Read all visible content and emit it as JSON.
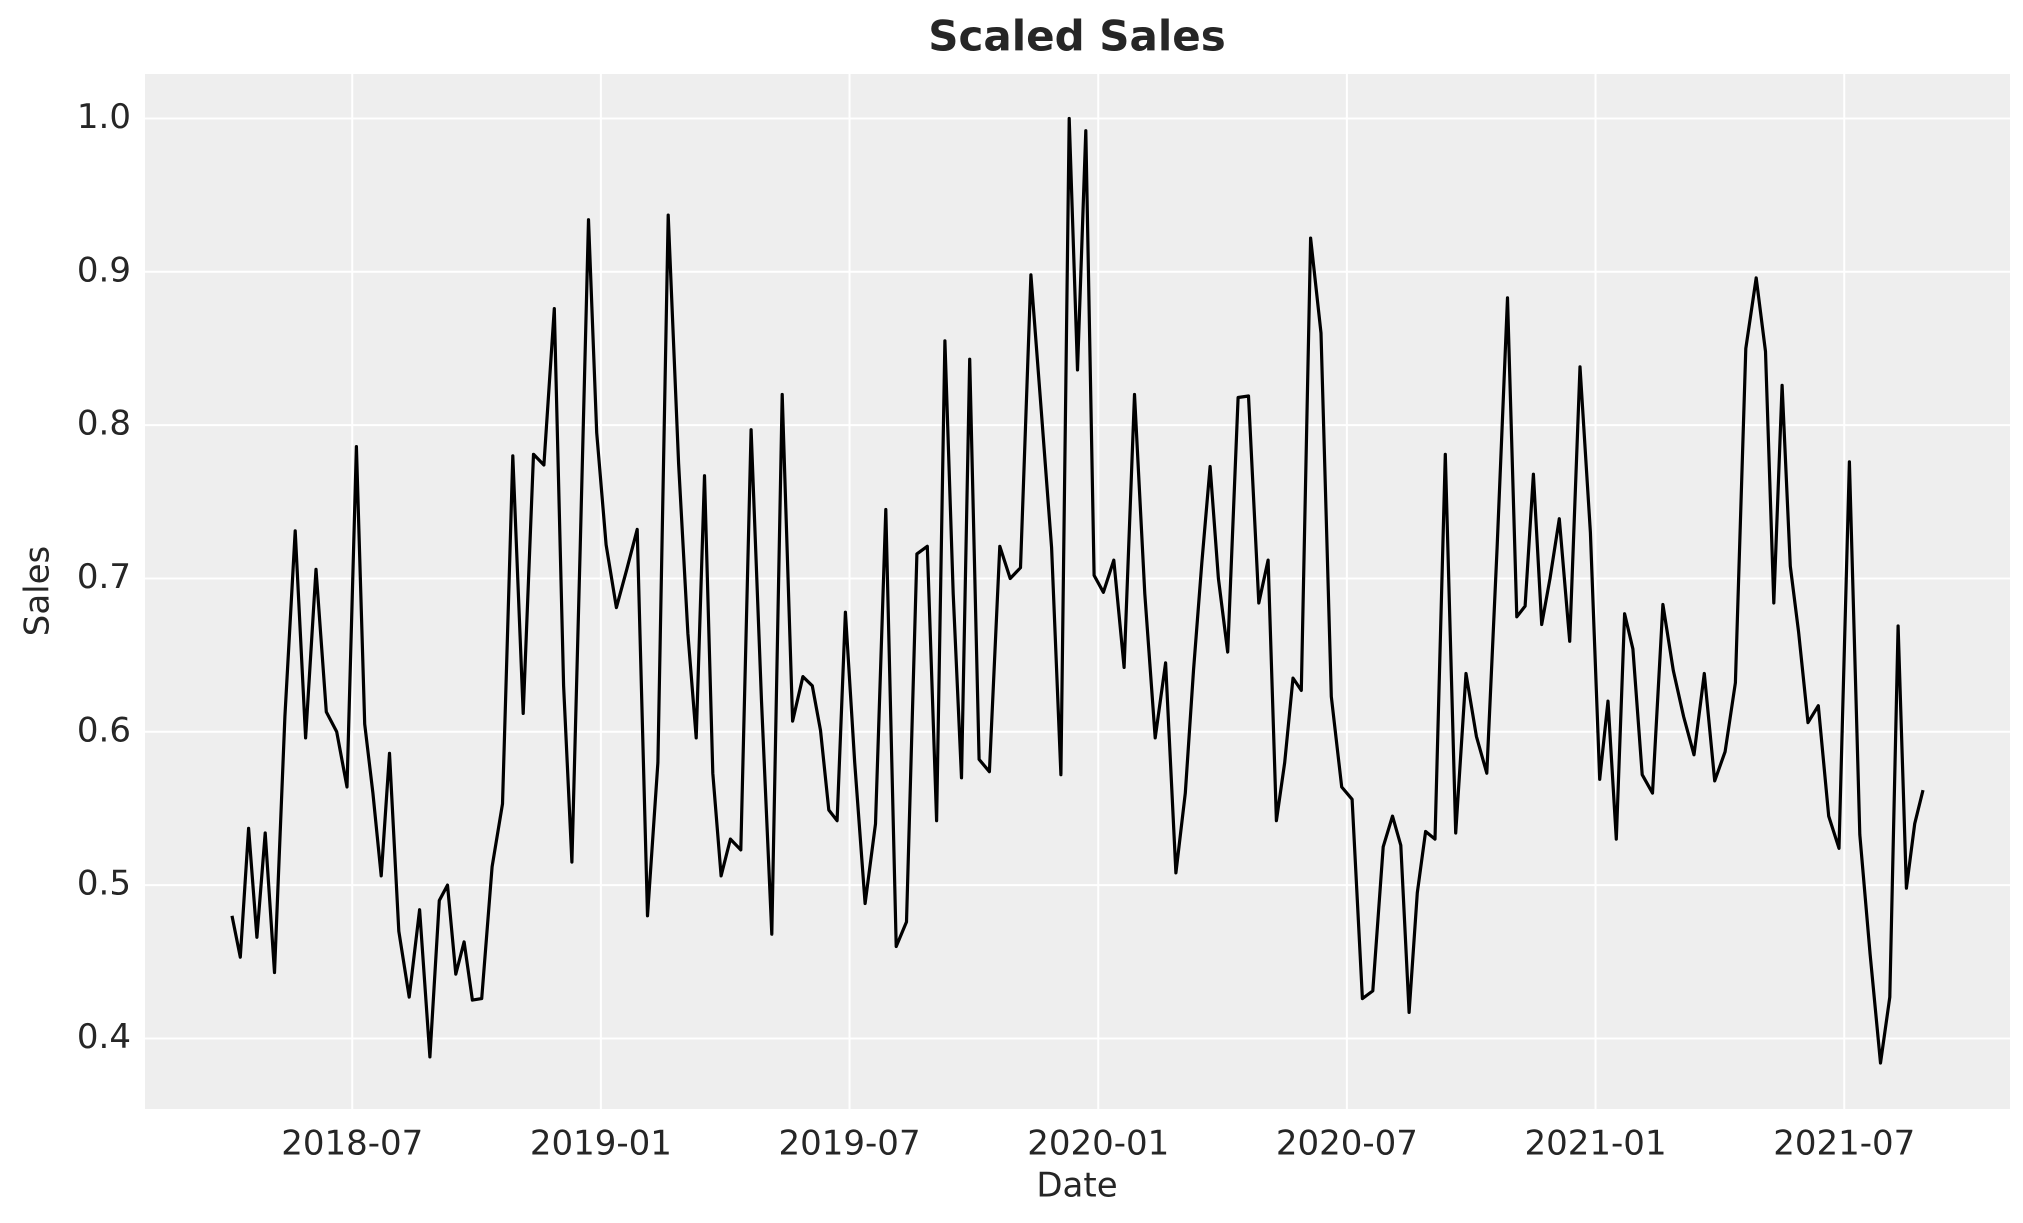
{
  "chart_data": {
    "type": "line",
    "title": "Scaled Sales",
    "xlabel": "Date",
    "ylabel": "Sales",
    "x": [
      "2018-04",
      "2018-04",
      "2018-04",
      "2018-04",
      "2018-04",
      "2018-05",
      "2018-05",
      "2018-05",
      "2018-05",
      "2018-06",
      "2018-06",
      "2018-06",
      "2018-06",
      "2018-07",
      "2018-07",
      "2018-07",
      "2018-07",
      "2018-07",
      "2018-08",
      "2018-08",
      "2018-08",
      "2018-08",
      "2018-09",
      "2018-09",
      "2018-09",
      "2018-09",
      "2018-09",
      "2018-10",
      "2018-10",
      "2018-10",
      "2018-10",
      "2018-11",
      "2018-11",
      "2018-11",
      "2018-11",
      "2018-12",
      "2018-12",
      "2018-12",
      "2018-12",
      "2018-12",
      "2019-01",
      "2019-01",
      "2019-01",
      "2019-01",
      "2019-02",
      "2019-02",
      "2019-02",
      "2019-02",
      "2019-03",
      "2019-03",
      "2019-03",
      "2019-03",
      "2019-03",
      "2019-04",
      "2019-04",
      "2019-04",
      "2019-04",
      "2019-05",
      "2019-05",
      "2019-05",
      "2019-05",
      "2019-06",
      "2019-06",
      "2019-06",
      "2019-06",
      "2019-06",
      "2019-07",
      "2019-07",
      "2019-07",
      "2019-07",
      "2019-08",
      "2019-08",
      "2019-08",
      "2019-08",
      "2019-09",
      "2019-09",
      "2019-09",
      "2019-09",
      "2019-09",
      "2019-10",
      "2019-10",
      "2019-10",
      "2019-10",
      "2019-11",
      "2019-11",
      "2019-11",
      "2019-11",
      "2019-12",
      "2019-12",
      "2019-12",
      "2019-12",
      "2019-12",
      "2020-01",
      "2020-01",
      "2020-01",
      "2020-01",
      "2020-02",
      "2020-02",
      "2020-02",
      "2020-02",
      "2020-03",
      "2020-03",
      "2020-03",
      "2020-03",
      "2020-03",
      "2020-04",
      "2020-04",
      "2020-04",
      "2020-04",
      "2020-05",
      "2020-05",
      "2020-05",
      "2020-05",
      "2020-05",
      "2020-06",
      "2020-06",
      "2020-06",
      "2020-06",
      "2020-07",
      "2020-07",
      "2020-07",
      "2020-07",
      "2020-08",
      "2020-08",
      "2020-08",
      "2020-08",
      "2020-08",
      "2020-09",
      "2020-09",
      "2020-09",
      "2020-09",
      "2020-10",
      "2020-10",
      "2020-10",
      "2020-10",
      "2020-11",
      "2020-11",
      "2020-11",
      "2020-11",
      "2020-11",
      "2020-12",
      "2020-12",
      "2020-12",
      "2020-12",
      "2021-01",
      "2021-01",
      "2021-01",
      "2021-01",
      "2021-01",
      "2021-02",
      "2021-02",
      "2021-02",
      "2021-02",
      "2021-03",
      "2021-03",
      "2021-03",
      "2021-03",
      "2021-04",
      "2021-04",
      "2021-04",
      "2021-04",
      "2021-05",
      "2021-05",
      "2021-05",
      "2021-05",
      "2021-05",
      "2021-06",
      "2021-06",
      "2021-06",
      "2021-06",
      "2021-07",
      "2021-07",
      "2021-07",
      "2021-07",
      "2021-08",
      "2021-08",
      "2021-08",
      "2021-08",
      "2021-08"
    ],
    "series": [
      {
        "name": "Sales",
        "color": "#000000",
        "values": [
          0.48,
          0.453,
          0.537,
          0.466,
          0.534,
          0.443,
          0.61,
          0.731,
          0.596,
          0.706,
          0.613,
          0.6,
          0.564,
          0.786,
          0.605,
          0.56,
          0.506,
          0.586,
          0.47,
          0.427,
          0.484,
          0.388,
          0.49,
          0.5,
          0.442,
          0.463,
          0.425,
          0.426,
          0.512,
          0.553,
          0.78,
          0.612,
          0.781,
          0.774,
          0.876,
          0.63,
          0.515,
          0.72,
          0.934,
          0.795,
          0.722,
          0.681,
          0.706,
          0.732,
          0.48,
          0.58,
          0.937,
          0.775,
          0.664,
          0.596,
          0.767,
          0.573,
          0.506,
          0.53,
          0.523,
          0.797,
          0.62,
          0.468,
          0.82,
          0.607,
          0.636,
          0.63,
          0.601,
          0.549,
          0.542,
          0.678,
          0.58,
          0.488,
          0.54,
          0.745,
          0.46,
          0.476,
          0.716,
          0.721,
          0.542,
          0.855,
          0.69,
          0.57,
          0.843,
          0.582,
          0.574,
          0.721,
          0.7,
          0.707,
          0.898,
          0.81,
          0.72,
          0.572,
          1.0,
          0.836,
          0.992,
          0.702,
          0.691,
          0.712,
          0.642,
          0.82,
          0.69,
          0.596,
          0.645,
          0.508,
          0.56,
          0.64,
          0.71,
          0.773,
          0.7,
          0.652,
          0.818,
          0.819,
          0.684,
          0.712,
          0.542,
          0.58,
          0.635,
          0.627,
          0.922,
          0.86,
          0.623,
          0.564,
          0.556,
          0.426,
          0.431,
          0.525,
          0.545,
          0.526,
          0.417,
          0.495,
          0.535,
          0.53,
          0.781,
          0.534,
          0.638,
          0.597,
          0.573,
          0.72,
          0.883,
          0.675,
          0.682,
          0.768,
          0.67,
          0.7,
          0.739,
          0.659,
          0.838,
          0.73,
          0.569,
          0.62,
          0.53,
          0.677,
          0.654,
          0.572,
          0.56,
          0.683,
          0.64,
          0.61,
          0.585,
          0.638,
          0.568,
          0.587,
          0.632,
          0.85,
          0.896,
          0.848,
          0.684,
          0.826,
          0.708,
          0.665,
          0.606,
          0.617,
          0.545,
          0.524,
          0.776,
          0.533,
          0.455,
          0.384,
          0.427,
          0.669,
          0.498,
          0.54,
          0.562
        ]
      }
    ],
    "xlim": [
      "2018-02",
      "2021-11"
    ],
    "xticks": [
      "2018-07",
      "2019-01",
      "2019-07",
      "2020-01",
      "2020-07",
      "2021-01",
      "2021-07"
    ],
    "ylim": [
      0.354,
      1.029
    ],
    "yticks": [
      0.4,
      0.5,
      0.6,
      0.7,
      0.8,
      0.9,
      {
        "value": 1,
        "label": "1.0"
      }
    ],
    "grid": true
  }
}
